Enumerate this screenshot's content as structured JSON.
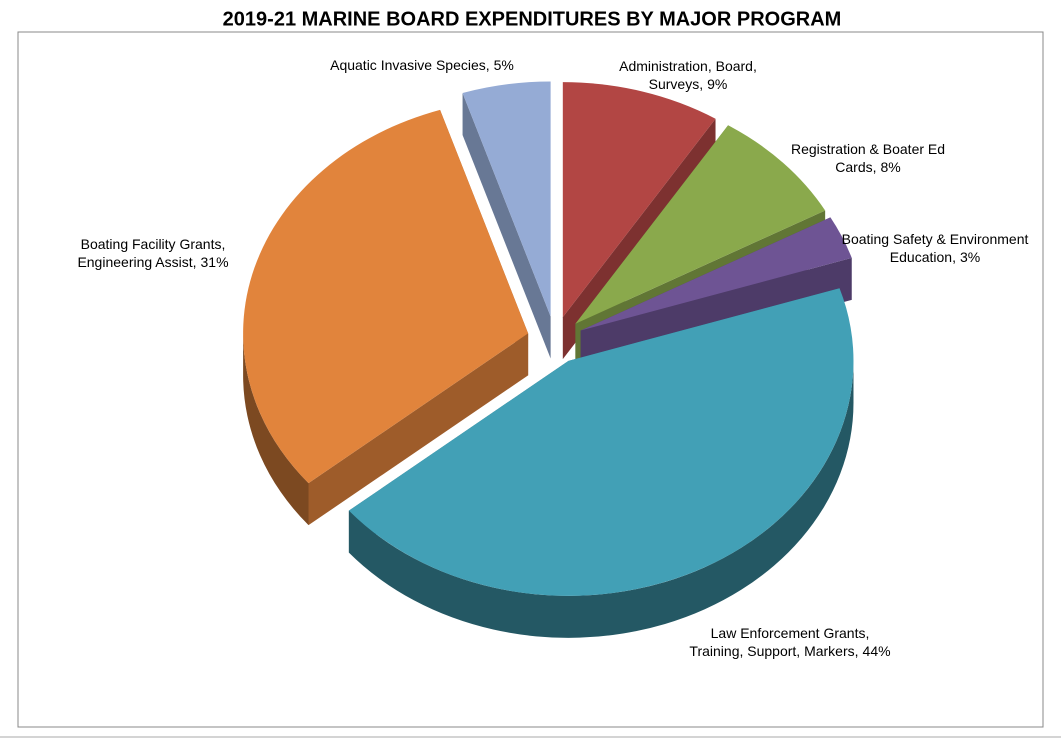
{
  "chart_data": {
    "type": "pie3d",
    "title": "2019-21 MARINE BOARD EXPENDITURES BY MAJOR PROGRAM",
    "categories": [
      "Administration, Board, Surveys,",
      "Registration & Boater Ed Cards,",
      "Boating Safety & Environment Education,",
      "Law Enforcement Grants, Training, Support, Markers,",
      "Boating Facility Grants, Engineering Assist,",
      "Aquatic Invasive Species,"
    ],
    "values": [
      9,
      8,
      3,
      44,
      31,
      5
    ],
    "value_labels": [
      "9%",
      "8%",
      "3%",
      "44%",
      "31%",
      "5%"
    ],
    "colors": [
      "#b24644",
      "#8aa94c",
      "#6e5494",
      "#42a0b6",
      "#e1843c",
      "#95abd5"
    ]
  }
}
